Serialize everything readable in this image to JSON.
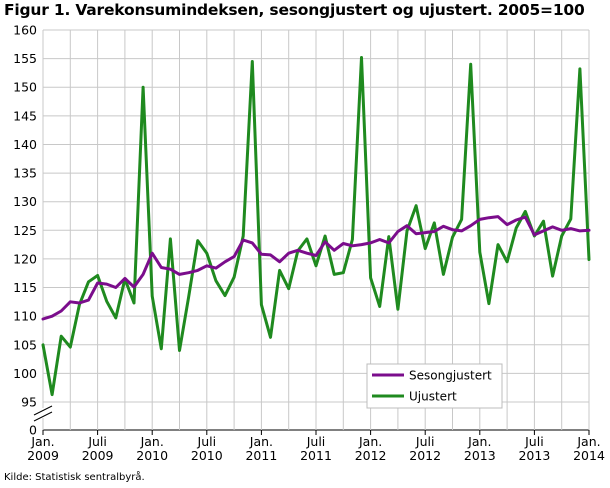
{
  "header": {
    "title": "Figur 1. Varekonsumindeksen, sesongjustert og ujustert. 2005=100"
  },
  "footer": {
    "source": "Kilde: Statistisk sentralbyrå."
  },
  "colors": {
    "sesongjustert": "#7b0d8c",
    "ujustert": "#1f8a1f",
    "grid": "#c8c8c8"
  },
  "chart_data": {
    "type": "line",
    "title": "Figur 1. Varekonsumindeksen, sesongjustert og ujustert. 2005=100",
    "xlabel": "",
    "ylabel": "",
    "y_ticks": [
      0,
      95,
      100,
      105,
      110,
      115,
      120,
      125,
      130,
      135,
      140,
      145,
      150,
      155,
      160
    ],
    "y_axis_break": "between 0 and 95",
    "ylim": [
      95,
      160
    ],
    "x_range": [
      "2009-01",
      "2014-01"
    ],
    "x_ticks": [
      {
        "line1": "Jan.",
        "line2": "2009",
        "x": "2009-01"
      },
      {
        "line1": "Juli",
        "line2": "2009",
        "x": "2009-07"
      },
      {
        "line1": "Jan.",
        "line2": "2010",
        "x": "2010-01"
      },
      {
        "line1": "Juli",
        "line2": "2010",
        "x": "2010-07"
      },
      {
        "line1": "Jan.",
        "line2": "2011",
        "x": "2011-01"
      },
      {
        "line1": "Juli",
        "line2": "2011",
        "x": "2011-07"
      },
      {
        "line1": "Jan.",
        "line2": "2012",
        "x": "2012-01"
      },
      {
        "line1": "Juli",
        "line2": "2012",
        "x": "2012-07"
      },
      {
        "line1": "Jan.",
        "line2": "2013",
        "x": "2013-01"
      },
      {
        "line1": "Juli",
        "line2": "2013",
        "x": "2013-07"
      },
      {
        "line1": "Jan.",
        "line2": "2014",
        "x": "2014-01"
      }
    ],
    "grid": "vertical and horizontal",
    "legend_position": "bottom-right",
    "x": [
      "2009-01",
      "2009-02",
      "2009-03",
      "2009-04",
      "2009-05",
      "2009-06",
      "2009-07",
      "2009-08",
      "2009-09",
      "2009-10",
      "2009-11",
      "2009-12",
      "2010-01",
      "2010-02",
      "2010-03",
      "2010-04",
      "2010-05",
      "2010-06",
      "2010-07",
      "2010-08",
      "2010-09",
      "2010-10",
      "2010-11",
      "2010-12",
      "2011-01",
      "2011-02",
      "2011-03",
      "2011-04",
      "2011-05",
      "2011-06",
      "2011-07",
      "2011-08",
      "2011-09",
      "2011-10",
      "2011-11",
      "2011-12",
      "2012-01",
      "2012-02",
      "2012-03",
      "2012-04",
      "2012-05",
      "2012-06",
      "2012-07",
      "2012-08",
      "2012-09",
      "2012-10",
      "2012-11",
      "2012-12",
      "2013-01",
      "2013-02",
      "2013-03",
      "2013-04",
      "2013-05",
      "2013-06",
      "2013-07",
      "2013-08",
      "2013-09",
      "2013-10",
      "2013-11",
      "2013-12",
      "2014-01"
    ],
    "series": [
      {
        "name": "Sesongjustert",
        "color": "#7b0d8c",
        "values": [
          109.5,
          110.0,
          110.9,
          112.5,
          112.3,
          112.8,
          115.8,
          115.6,
          115.0,
          116.6,
          115.1,
          117.3,
          121.0,
          118.5,
          118.2,
          117.3,
          117.6,
          118.0,
          118.8,
          118.4,
          119.5,
          120.4,
          123.3,
          122.8,
          120.8,
          120.7,
          119.5,
          121.0,
          121.5,
          121.0,
          120.6,
          123.0,
          121.5,
          122.7,
          122.3,
          122.5,
          122.8,
          123.4,
          122.8,
          124.8,
          125.8,
          124.4,
          124.6,
          124.8,
          125.7,
          125.1,
          124.9,
          125.8,
          126.9,
          127.2,
          127.4,
          126.0,
          126.8,
          127.3,
          124.2,
          124.9,
          125.6,
          125.0,
          125.3,
          124.9,
          125.0
        ]
      },
      {
        "name": "Ujustert",
        "color": "#1f8a1f",
        "values": [
          105.0,
          96.3,
          106.5,
          104.6,
          112.0,
          116.0,
          117.1,
          112.6,
          109.7,
          116.5,
          112.3,
          150.0,
          113.5,
          104.3,
          123.5,
          104.0,
          113.3,
          123.2,
          121.0,
          116.2,
          113.6,
          116.8,
          124.0,
          154.5,
          112.0,
          106.3,
          118.0,
          114.8,
          121.4,
          123.5,
          118.8,
          124.0,
          117.3,
          117.6,
          123.4,
          155.2,
          116.7,
          111.7,
          123.9,
          111.2,
          124.9,
          129.3,
          121.8,
          126.3,
          117.3,
          123.8,
          126.9,
          154.0,
          121.2,
          112.2,
          122.5,
          119.5,
          125.4,
          128.3,
          124.0,
          126.6,
          117.0,
          124.0,
          127.0,
          153.2,
          119.9
        ]
      }
    ]
  }
}
